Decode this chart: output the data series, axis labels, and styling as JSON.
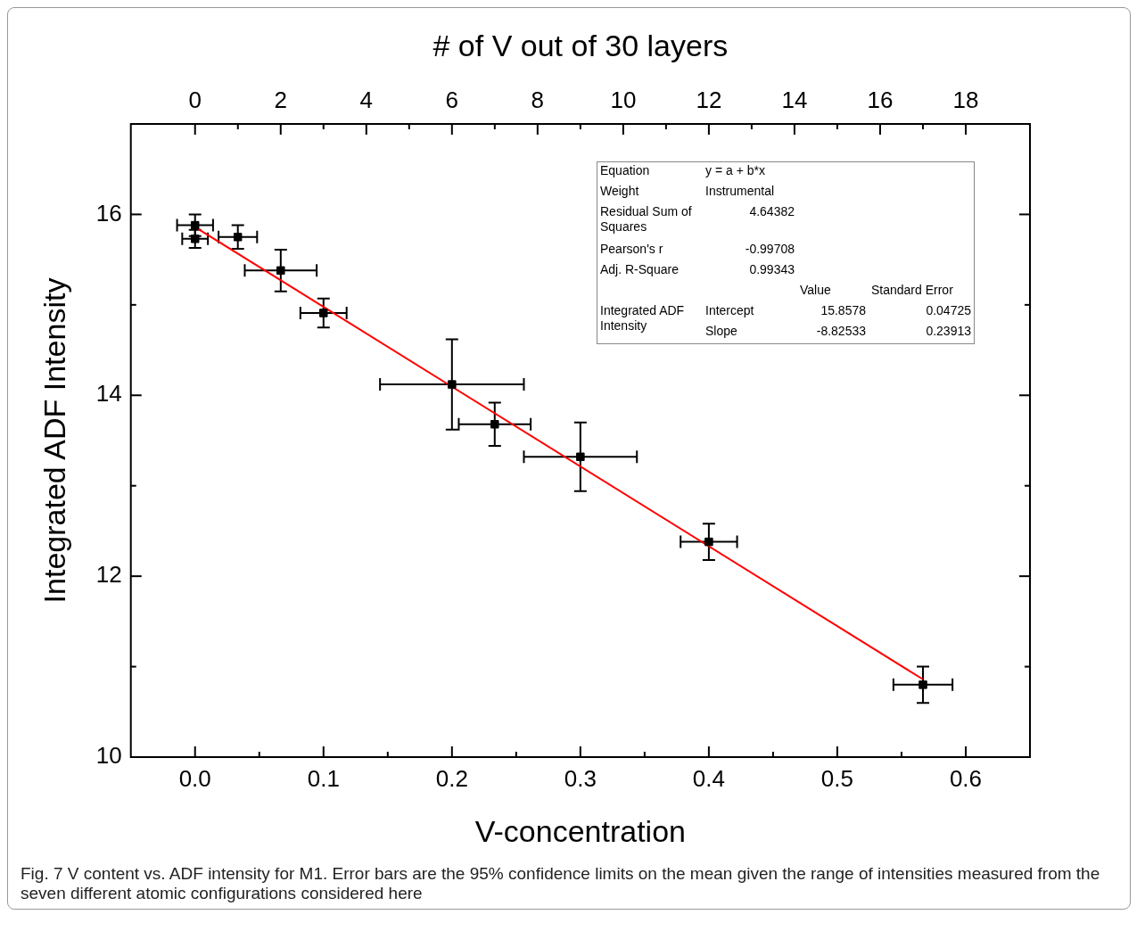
{
  "chart_data": {
    "type": "scatter",
    "xlabel": "V-concentration",
    "ylabel": "Integrated ADF Intensity",
    "x2label": "# of V out of 30 layers",
    "xlim": [
      -0.05,
      0.65
    ],
    "xticks": [
      {
        "value": 0,
        "label": "0.0"
      },
      {
        "value": 0.05,
        "label": null
      },
      0.1,
      {
        "value": 0.15,
        "label": null
      },
      0.2,
      {
        "value": 0.25,
        "label": null
      },
      0.3,
      {
        "value": 0.35,
        "label": null
      },
      0.4,
      {
        "value": 0.45,
        "label": null
      },
      0.5,
      {
        "value": 0.55,
        "label": null
      },
      0.6
    ],
    "x2lim": [
      -1.5,
      19.5
    ],
    "x2ticks": [
      0,
      {
        "value": 1,
        "label": null
      },
      2,
      {
        "value": 3,
        "label": null
      },
      4,
      {
        "value": 5,
        "label": null
      },
      6,
      {
        "value": 7,
        "label": null
      },
      8,
      {
        "value": 9,
        "label": null
      },
      10,
      {
        "value": 11,
        "label": null
      },
      12,
      {
        "value": 13,
        "label": null
      },
      14,
      {
        "value": 15,
        "label": null
      },
      16,
      {
        "value": 17,
        "label": null
      },
      18
    ],
    "ylim": [
      10,
      17
    ],
    "yticks": [
      10,
      {
        "value": 11,
        "label": null
      },
      12,
      {
        "value": 13,
        "label": null
      },
      14,
      {
        "value": 15,
        "label": null
      },
      16,
      {
        "value": 17,
        "label": null
      }
    ],
    "grid": false,
    "legend": false,
    "series": [
      {
        "color": "#000000",
        "marker": "square",
        "x": [
          0,
          0,
          0.0333,
          0.0667,
          0.1,
          0.2,
          0.2333,
          0.3,
          0.4,
          0.5667
        ],
        "values": [
          15.88,
          15.73,
          15.75,
          15.38,
          14.91,
          14.12,
          13.68,
          13.32,
          12.38,
          10.8
        ],
        "errors": [
          0.12,
          0.1,
          0.13,
          0.23,
          0.16,
          0.5,
          0.24,
          0.38,
          0.2,
          0.2
        ],
        "xerrors": [
          0.014,
          0.01,
          0.015,
          0.028,
          0.018,
          0.056,
          0.028,
          0.044,
          0.022,
          0.023
        ]
      },
      {
        "type": "line",
        "color": "#ff0000",
        "marker": "none",
        "x": [
          0,
          0.5667
        ],
        "values": [
          15.86,
          10.86
        ]
      }
    ],
    "annotations": [
      "Fig. 7  V content vs. ADF intensity for M1. Error bars are the 95% confidence limits on the mean given the range of intensities measured from the seven different atomic configurations considered here",
      "Equation",
      "y = a + b*x",
      "Weight",
      "Instrumental",
      "Residual Sum of Squares",
      "4.64382",
      "Pearson's r",
      "-0.99708",
      "Adj. R-Square",
      "0.99343",
      "Value",
      "Standard Error",
      "Integrated ADF Intensity",
      "Intercept",
      "15.8578",
      "0.04725",
      "Slope",
      "-8.82533",
      "0.23913"
    ]
  }
}
